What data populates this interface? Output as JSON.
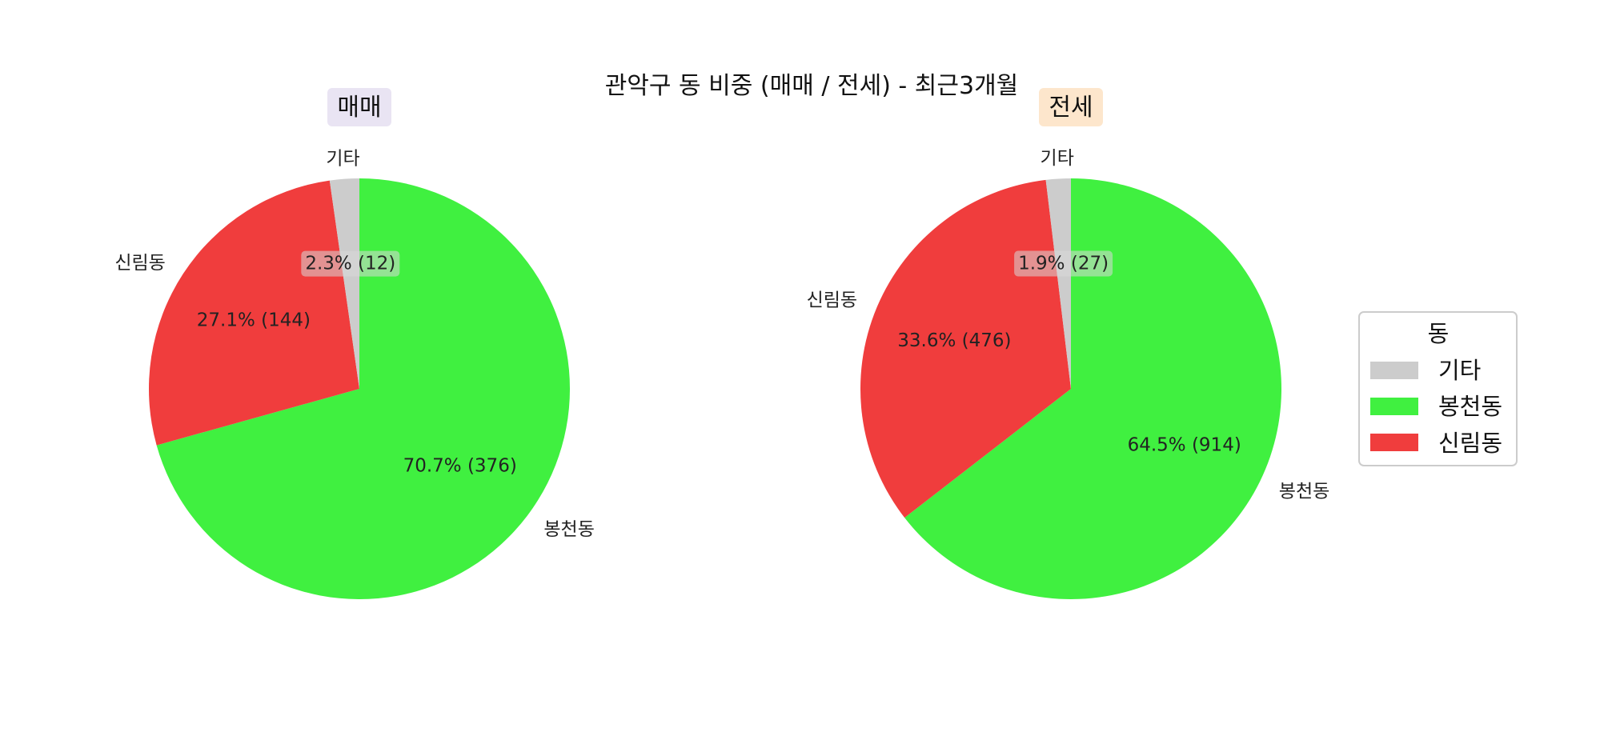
{
  "title": "관악구 동 비중 (매매 / 전세) - 최근3개월",
  "legend": {
    "title": "동",
    "placement": "right",
    "items": [
      {
        "label": "기타",
        "color": "#cccccc"
      },
      {
        "label": "봉천동",
        "color": "#40f040"
      },
      {
        "label": "신림동",
        "color": "#f03d3d"
      }
    ]
  },
  "chart_data": [
    {
      "type": "pie",
      "title": "매매",
      "title_background": "#e9e4f3",
      "categories": [
        "봉천동",
        "신림동",
        "기타"
      ],
      "values": [
        376,
        144,
        12
      ],
      "percent_labels": [
        "70.7% (376)",
        "27.1% (144)",
        "2.3% (12)"
      ],
      "colors": [
        "#40f040",
        "#f03d3d",
        "#cccccc"
      ],
      "start_angle_deg": 90,
      "direction": "clockwise"
    },
    {
      "type": "pie",
      "title": "전세",
      "title_background": "#fde6cc",
      "categories": [
        "봉천동",
        "신림동",
        "기타"
      ],
      "values": [
        914,
        476,
        27
      ],
      "percent_labels": [
        "64.5% (914)",
        "33.6% (476)",
        "1.9% (27)"
      ],
      "colors": [
        "#40f040",
        "#f03d3d",
        "#cccccc"
      ],
      "start_angle_deg": 90,
      "direction": "clockwise"
    }
  ]
}
